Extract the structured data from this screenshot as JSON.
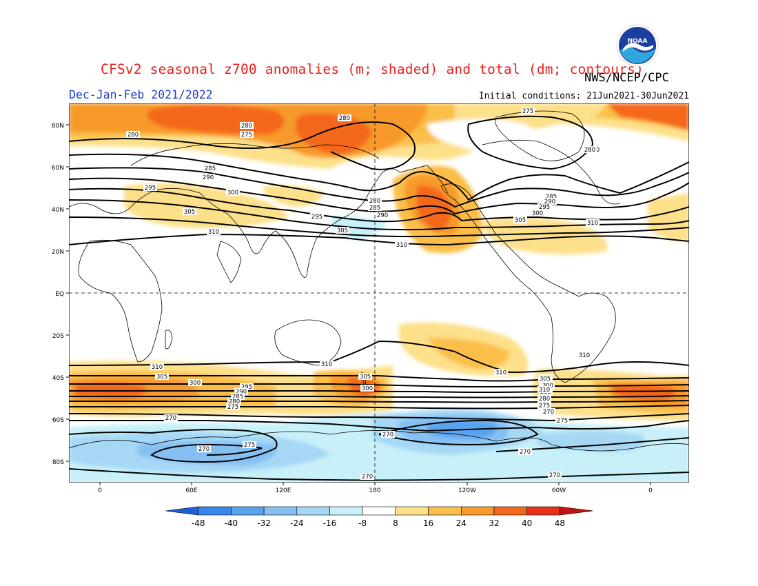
{
  "header": {
    "title": "CFSv2 seasonal z700 anomalies (m; shaded) and total (dm; contours)",
    "agency": "NWS/NCEP/CPC",
    "period": "Dec-Jan-Feb 2021/2022",
    "initial_conditions": "Initial conditions: 21Jun2021-30Jun2021",
    "logo_text": "NOAA"
  },
  "map": {
    "lat_labels": [
      "80N",
      "60N",
      "40N",
      "20N",
      "EQ",
      "20S",
      "40S",
      "60S",
      "80S"
    ],
    "lon_labels": [
      "0",
      "60E",
      "120E",
      "180",
      "120W",
      "60W",
      "0"
    ],
    "contour_labels": [
      "280",
      "275",
      "280",
      "280",
      "285",
      "290",
      "295",
      "300",
      "305",
      "310",
      "280",
      "285",
      "290",
      "295",
      "305",
      "310",
      "285",
      "290",
      "295",
      "300",
      "305",
      "310",
      "310",
      "305",
      "300",
      "295",
      "290",
      "285",
      "280",
      "275",
      "270",
      "270",
      "275",
      "270",
      "270",
      "275",
      "270",
      "310",
      "305",
      "300",
      "295",
      "290",
      "285",
      "280",
      "275",
      "270",
      "310",
      "310",
      "305",
      "300",
      "310",
      "280",
      "280",
      "275",
      "270",
      "275",
      "270"
    ],
    "colors": {
      "land_outline": "#000000",
      "background": "#ffffff",
      "grid_line": "#000000"
    }
  },
  "colorbar": {
    "ticks": [
      "-48",
      "-40",
      "-32",
      "-24",
      "-16",
      "-8",
      "8",
      "16",
      "24",
      "32",
      "40",
      "48"
    ],
    "colors": [
      "#1f5fd6",
      "#3a86ea",
      "#5aa3ef",
      "#86c0f3",
      "#a6d8f6",
      "#c8f0f8",
      "#ffffff",
      "#fde08a",
      "#fbbf4a",
      "#f79a2c",
      "#f4681e",
      "#e8331a",
      "#c41212"
    ]
  }
}
